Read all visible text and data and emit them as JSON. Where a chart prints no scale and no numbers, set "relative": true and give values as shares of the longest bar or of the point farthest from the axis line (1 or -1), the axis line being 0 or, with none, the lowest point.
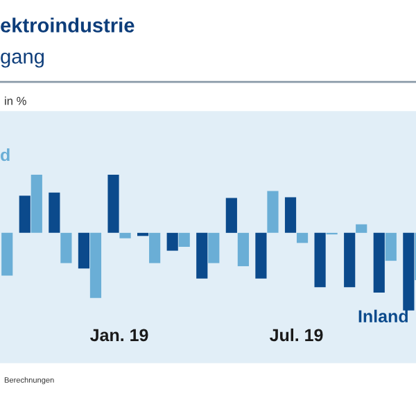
{
  "chart_data": {
    "type": "bar",
    "title": "ektroindustrie",
    "subtitle": "gang",
    "relative": true,
    "categories": [
      null,
      null,
      null,
      null,
      "Jan. 19",
      null,
      null,
      null,
      null,
      null,
      "Jul. 19",
      null,
      null,
      null,
      null
    ],
    "series": [
      {
        "name": "Inland",
        "color": "#0b4a8c",
        "values": [
          null,
          0.48,
          0.52,
          -0.46,
          0.75,
          -0.04,
          -0.23,
          -0.59,
          0.45,
          -0.59,
          0.46,
          -0.7,
          -0.7,
          -0.77,
          -1.0
        ]
      },
      {
        "name": "d",
        "color": "#6aaed6",
        "values": [
          -0.55,
          0.75,
          -0.39,
          -0.84,
          -0.07,
          -0.39,
          -0.18,
          -0.39,
          -0.43,
          0.54,
          -0.13,
          -0.02,
          0.11,
          -0.36,
          -0.61
        ]
      }
    ],
    "annotations": [
      "in %",
      "Berechnungen"
    ],
    "legend": false,
    "grid": false
  }
}
